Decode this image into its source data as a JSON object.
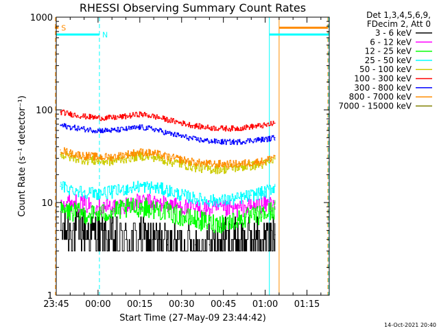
{
  "chart_data": {
    "type": "line",
    "title": "RHESSI Observing Summary Count Rates",
    "xlabel": "Start Time (27-May-09 23:44:42)",
    "ylabel": "Count Rate (s⁻¹ detector⁻¹)",
    "y_scale": "log",
    "ylim": [
      1,
      1000
    ],
    "xlim_minutes_after_2345": [
      0,
      98
    ],
    "x_ticks": [
      {
        "label": "23:45",
        "t": 0
      },
      {
        "label": "00:00",
        "t": 15
      },
      {
        "label": "00:15",
        "t": 30
      },
      {
        "label": "00:30",
        "t": 45
      },
      {
        "label": "00:45",
        "t": 60
      },
      {
        "label": "01:00",
        "t": 75
      },
      {
        "label": "01:15",
        "t": 90
      }
    ],
    "y_ticks": [
      {
        "label": "1",
        "v": 1
      },
      {
        "label": "10",
        "v": 10
      },
      {
        "label": "100",
        "v": 100
      },
      {
        "label": "1000",
        "v": 1000
      }
    ],
    "legend": {
      "position": "right-outside",
      "header": [
        "Det 1,3,4,5,6,9,",
        "FDecim 2, Att 0"
      ]
    },
    "series": [
      {
        "name": "3 - 6 keV",
        "color": "#000000",
        "x": [
          1.5,
          5,
          10,
          15,
          20,
          25,
          30,
          35,
          40,
          45,
          50,
          55,
          60,
          65,
          70,
          75,
          78.5
        ],
        "y": [
          5,
          5,
          5,
          4.5,
          4,
          4,
          4,
          4,
          3.5,
          3.5,
          3.5,
          3.5,
          4,
          4,
          4,
          4,
          4.5
        ]
      },
      {
        "name": "6 - 12 keV",
        "color": "#ff00ff",
        "x": [
          1.5,
          5,
          10,
          15,
          20,
          25,
          30,
          35,
          40,
          45,
          50,
          55,
          60,
          65,
          70,
          75,
          78.5
        ],
        "y": [
          10,
          10,
          9.5,
          9,
          9,
          9.5,
          10,
          10,
          9.5,
          9,
          8.5,
          8.5,
          8.5,
          8.5,
          9,
          9.5,
          10
        ]
      },
      {
        "name": "12 - 25 keV",
        "color": "#00ff00",
        "x": [
          1.5,
          5,
          10,
          15,
          20,
          25,
          30,
          35,
          40,
          45,
          50,
          55,
          60,
          65,
          70,
          75,
          78.5
        ],
        "y": [
          8,
          8,
          7.5,
          7.5,
          8,
          8.5,
          9,
          8.5,
          8,
          7,
          6.5,
          6,
          6,
          6.5,
          7,
          7.5,
          8.5
        ]
      },
      {
        "name": "25 - 50 keV",
        "color": "#00ffff",
        "x": [
          1.5,
          5,
          10,
          15,
          20,
          25,
          30,
          35,
          40,
          45,
          50,
          55,
          60,
          65,
          70,
          75,
          78.5
        ],
        "y": [
          15,
          14,
          13,
          12.5,
          13,
          14,
          15,
          14.5,
          13.5,
          12,
          11,
          10.5,
          10.5,
          11,
          12,
          13,
          15
        ]
      },
      {
        "name": "50 - 100 keV",
        "color": "#cccc00",
        "x": [
          1.5,
          5,
          10,
          15,
          20,
          25,
          30,
          35,
          40,
          45,
          50,
          55,
          60,
          65,
          70,
          75,
          78.5
        ],
        "y": [
          33,
          31,
          29,
          28,
          28,
          30,
          32,
          31,
          28,
          26,
          24,
          23,
          23,
          24,
          25,
          26,
          30
        ]
      },
      {
        "name": "100 - 300 keV",
        "color": "#ff0000",
        "x": [
          1.5,
          5,
          10,
          15,
          20,
          25,
          30,
          35,
          40,
          45,
          50,
          55,
          60,
          65,
          70,
          75,
          78.5
        ],
        "y": [
          95,
          90,
          85,
          82,
          82,
          85,
          90,
          85,
          78,
          72,
          67,
          64,
          63,
          63,
          66,
          68,
          72
        ]
      },
      {
        "name": "300 - 800 keV",
        "color": "#0000ff",
        "x": [
          1.5,
          5,
          10,
          15,
          20,
          25,
          30,
          35,
          40,
          45,
          50,
          55,
          60,
          65,
          70,
          75,
          78.5
        ],
        "y": [
          68,
          65,
          62,
          60,
          60,
          62,
          65,
          62,
          56,
          52,
          48,
          46,
          45,
          45,
          47,
          48,
          50
        ]
      },
      {
        "name": "800 - 7000 keV",
        "color": "#ff8c00",
        "x": [
          1.5,
          5,
          10,
          15,
          20,
          25,
          30,
          35,
          40,
          45,
          50,
          55,
          60,
          65,
          70,
          75,
          78.5
        ],
        "y": [
          37,
          34,
          32,
          31,
          31,
          33,
          35,
          34,
          31,
          29,
          27,
          26,
          26,
          26,
          27,
          28,
          32
        ]
      },
      {
        "name": "7000 - 15000 keV",
        "color": "#808000",
        "x": [],
        "y": []
      }
    ],
    "flag_bars": [
      {
        "label": "S",
        "color": "#ff8c00",
        "x_start": -0.5,
        "x_end": 0.8,
        "y": 770
      },
      {
        "label": "N",
        "color": "#00ffff",
        "x_start": 0,
        "x_end": 15.5,
        "y": 650
      },
      {
        "label": "",
        "color": "#00ffff",
        "x_start": 76.5,
        "x_end": 98,
        "y": 650
      },
      {
        "label": "",
        "color": "#ff8c00",
        "x_start": 80,
        "x_end": 97.5,
        "y": 770
      }
    ],
    "vertical_markers": [
      {
        "t": -0.3,
        "color": "#ff8c00",
        "style": "dashed"
      },
      {
        "t": 0,
        "color": "#00ffff",
        "style": "solid"
      },
      {
        "t": 15.5,
        "color": "#00ffff",
        "style": "dashed"
      },
      {
        "t": 76.5,
        "color": "#00ffff",
        "style": "solid"
      },
      {
        "t": 80,
        "color": "#ff8c00",
        "style": "solid"
      },
      {
        "t": 97.5,
        "color": "#ff8c00",
        "style": "dashed"
      },
      {
        "t": 97.8,
        "color": "#00ffff",
        "style": "dashed"
      }
    ],
    "footer_timestamp": "14-Oct-2021 20:40"
  }
}
